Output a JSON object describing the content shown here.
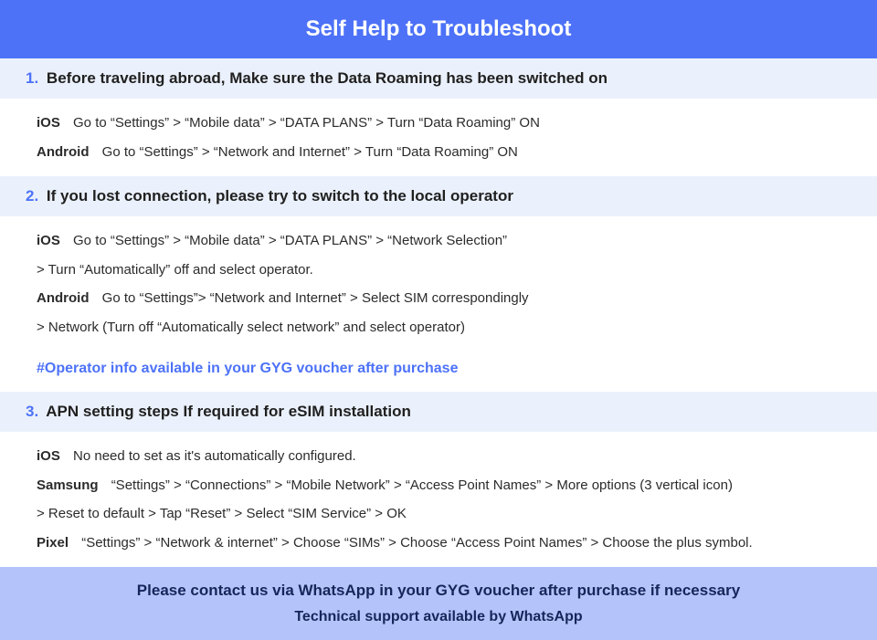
{
  "colors": {
    "header_bg": "#4d72f8",
    "header_text": "#ffffff",
    "section_title_bg": "#ebf1fc",
    "accent": "#4d72f8",
    "body_text": "#2b2b2b",
    "footer_bg": "#b4c4fb",
    "footer_text": "#17255a"
  },
  "header": {
    "title": "Self Help to Troubleshoot"
  },
  "sections": [
    {
      "num": "1.",
      "lead": "Before traveling abroad,",
      "rest": " Make sure the Data Roaming has been switched on",
      "rows": [
        {
          "platform": "iOS",
          "text": "Go to “Settings” > “Mobile data” > “DATA PLANS” > Turn “Data Roaming” ON"
        },
        {
          "platform": "Android",
          "text": "Go to “Settings” > “Network and Internet” > Turn “Data Roaming” ON"
        }
      ]
    },
    {
      "num": "2.",
      "lead": "",
      "rest": "If you lost connection, please try to switch to the local operator",
      "rows": [
        {
          "platform": "iOS",
          "text": "Go to “Settings” > “Mobile data” > “DATA PLANS” > “Network Selection”"
        },
        {
          "platform": "",
          "text": "> Turn “Automatically” off and select operator."
        },
        {
          "platform": "Android",
          "text": "Go to “Settings”>  “Network and Internet” > Select SIM correspondingly"
        },
        {
          "platform": "",
          "text": "> Network (Turn off “Automatically select network” and select operator)"
        }
      ],
      "note": "#Operator info available in your GYG voucher after purchase"
    },
    {
      "num": "3.",
      "lead": "",
      "rest": "APN setting steps If required for eSIM installation",
      "rows": [
        {
          "platform": "iOS",
          "text": "No need to set as it's automatically configured."
        },
        {
          "platform": "Samsung",
          "text": "“Settings” > “Connections” > “Mobile Network” > “Access Point Names” > More options (3 vertical icon)"
        },
        {
          "platform": "",
          "text": "> Reset to default > Tap “Reset” > Select “SIM Service” > OK"
        },
        {
          "platform": "Pixel",
          "text": "“Settings” > “Network & internet” > Choose “SIMs” > Choose “Access Point Names” > Choose the plus symbol."
        }
      ]
    }
  ],
  "footer": {
    "line1": "Please contact us via WhatsApp  in your GYG voucher after purchase if necessary",
    "line2": "Technical support available by WhatsApp"
  }
}
